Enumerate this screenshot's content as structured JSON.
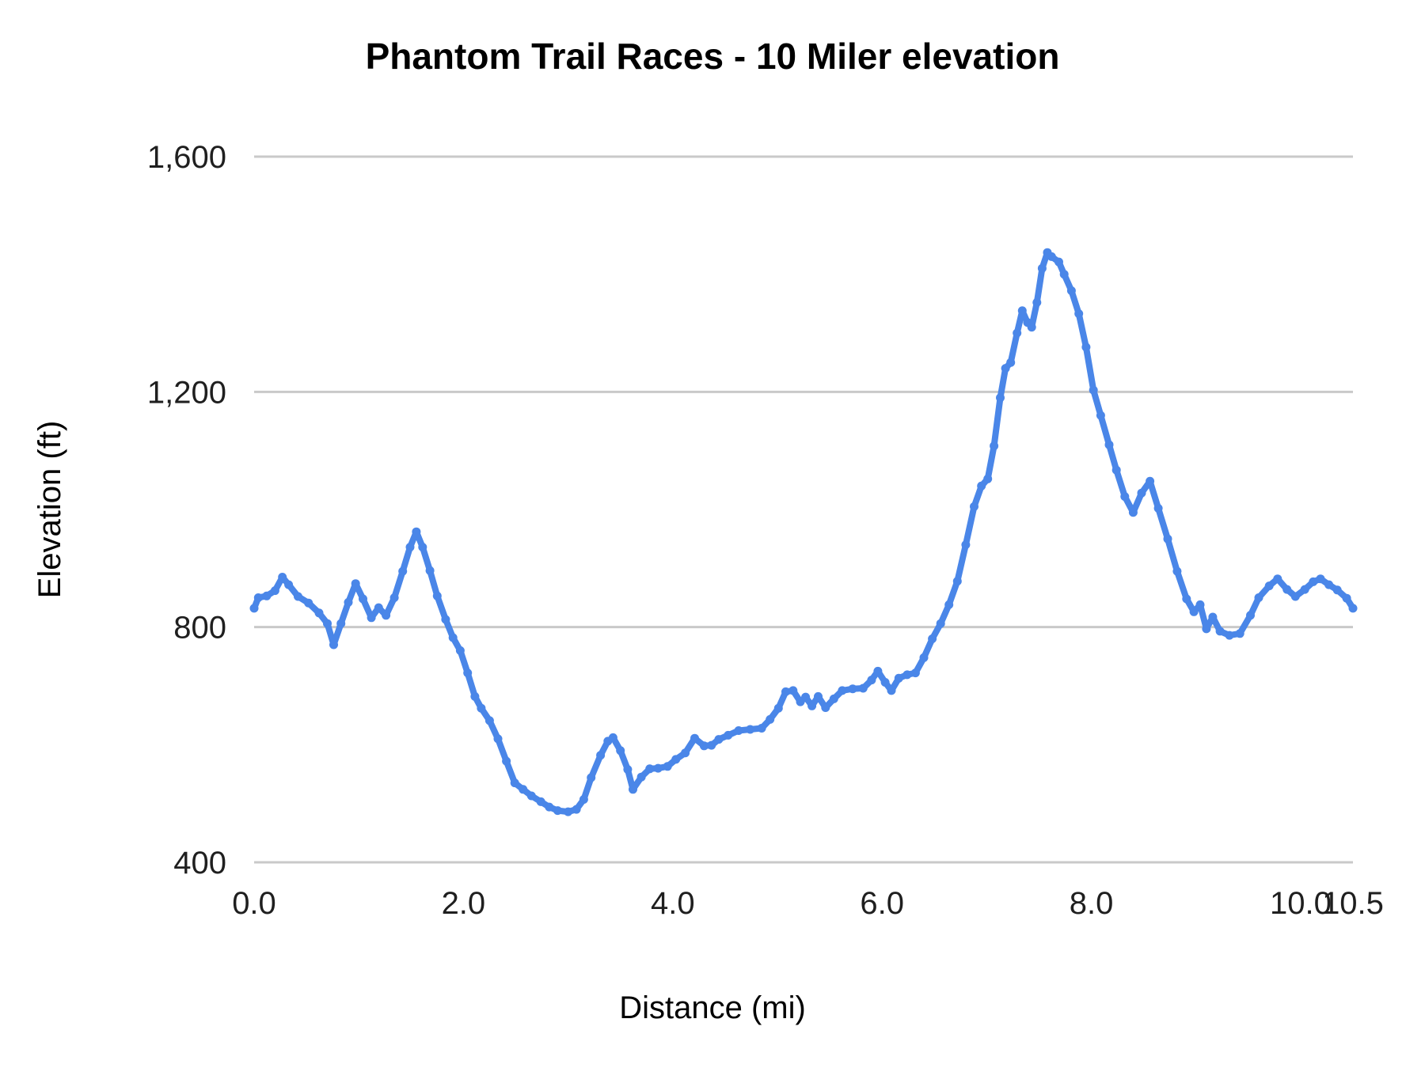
{
  "title": "Phantom Trail Races - 10 Miler elevation",
  "chart_data": {
    "type": "line",
    "title": "Phantom Trail Races - 10 Miler elevation",
    "xlabel": "Distance (mi)",
    "ylabel": "Elevation (ft)",
    "xlim": [
      0,
      10.5
    ],
    "ylim": [
      400,
      1600
    ],
    "grid": "horizontal-only",
    "legend": "none",
    "series_color": "#4a86e8",
    "gridline_color": "#c9c9c9",
    "label_color": "#1f1f1f",
    "title_color": "#000000",
    "x_ticks": [
      {
        "value": 0,
        "label": "0.0"
      },
      {
        "value": 2,
        "label": "2.0"
      },
      {
        "value": 4,
        "label": "4.0"
      },
      {
        "value": 6,
        "label": "6.0"
      },
      {
        "value": 8,
        "label": "8.0"
      },
      {
        "value": 10,
        "label": "10.0"
      },
      {
        "value": 10.5,
        "label": "10.5"
      }
    ],
    "y_ticks": [
      {
        "value": 400,
        "label": "400"
      },
      {
        "value": 800,
        "label": "800"
      },
      {
        "value": 1200,
        "label": "1,200"
      },
      {
        "value": 1600,
        "label": "1,600"
      }
    ],
    "points": [
      [
        0.0,
        832
      ],
      [
        0.04,
        850
      ],
      [
        0.12,
        853
      ],
      [
        0.2,
        862
      ],
      [
        0.27,
        885
      ],
      [
        0.33,
        872
      ],
      [
        0.42,
        852
      ],
      [
        0.52,
        841
      ],
      [
        0.62,
        824
      ],
      [
        0.7,
        806
      ],
      [
        0.76,
        770
      ],
      [
        0.83,
        806
      ],
      [
        0.9,
        842
      ],
      [
        0.97,
        874
      ],
      [
        1.04,
        848
      ],
      [
        1.12,
        816
      ],
      [
        1.19,
        833
      ],
      [
        1.26,
        820
      ],
      [
        1.34,
        850
      ],
      [
        1.42,
        895
      ],
      [
        1.49,
        936
      ],
      [
        1.55,
        962
      ],
      [
        1.61,
        936
      ],
      [
        1.68,
        896
      ],
      [
        1.75,
        853
      ],
      [
        1.83,
        813
      ],
      [
        1.9,
        782
      ],
      [
        1.97,
        760
      ],
      [
        2.04,
        722
      ],
      [
        2.11,
        682
      ],
      [
        2.17,
        662
      ],
      [
        2.25,
        641
      ],
      [
        2.33,
        610
      ],
      [
        2.41,
        572
      ],
      [
        2.49,
        535
      ],
      [
        2.57,
        524
      ],
      [
        2.65,
        513
      ],
      [
        2.74,
        503
      ],
      [
        2.82,
        494
      ],
      [
        2.9,
        488
      ],
      [
        3.0,
        486
      ],
      [
        3.08,
        490
      ],
      [
        3.15,
        507
      ],
      [
        3.22,
        544
      ],
      [
        3.31,
        582
      ],
      [
        3.38,
        606
      ],
      [
        3.43,
        612
      ],
      [
        3.5,
        590
      ],
      [
        3.57,
        558
      ],
      [
        3.62,
        524
      ],
      [
        3.7,
        545
      ],
      [
        3.78,
        559
      ],
      [
        3.86,
        560
      ],
      [
        3.95,
        563
      ],
      [
        4.03,
        575
      ],
      [
        4.12,
        586
      ],
      [
        4.21,
        611
      ],
      [
        4.3,
        598
      ],
      [
        4.37,
        599
      ],
      [
        4.44,
        609
      ],
      [
        4.53,
        616
      ],
      [
        4.63,
        624
      ],
      [
        4.74,
        626
      ],
      [
        4.85,
        628
      ],
      [
        4.93,
        643
      ],
      [
        5.01,
        662
      ],
      [
        5.08,
        690
      ],
      [
        5.15,
        692
      ],
      [
        5.22,
        673
      ],
      [
        5.27,
        681
      ],
      [
        5.33,
        666
      ],
      [
        5.39,
        682
      ],
      [
        5.46,
        663
      ],
      [
        5.54,
        678
      ],
      [
        5.62,
        692
      ],
      [
        5.72,
        695
      ],
      [
        5.82,
        696
      ],
      [
        5.9,
        710
      ],
      [
        5.96,
        725
      ],
      [
        6.03,
        706
      ],
      [
        6.09,
        692
      ],
      [
        6.16,
        713
      ],
      [
        6.24,
        719
      ],
      [
        6.32,
        722
      ],
      [
        6.4,
        748
      ],
      [
        6.48,
        780
      ],
      [
        6.56,
        806
      ],
      [
        6.64,
        838
      ],
      [
        6.72,
        878
      ],
      [
        6.8,
        940
      ],
      [
        6.88,
        1005
      ],
      [
        6.95,
        1040
      ],
      [
        7.01,
        1052
      ],
      [
        7.07,
        1108
      ],
      [
        7.13,
        1190
      ],
      [
        7.18,
        1240
      ],
      [
        7.23,
        1250
      ],
      [
        7.29,
        1300
      ],
      [
        7.34,
        1338
      ],
      [
        7.39,
        1318
      ],
      [
        7.43,
        1310
      ],
      [
        7.48,
        1352
      ],
      [
        7.53,
        1410
      ],
      [
        7.58,
        1437
      ],
      [
        7.62,
        1430
      ],
      [
        7.69,
        1421
      ],
      [
        7.74,
        1400
      ],
      [
        7.81,
        1372
      ],
      [
        7.88,
        1333
      ],
      [
        7.95,
        1276
      ],
      [
        8.02,
        1203
      ],
      [
        8.09,
        1160
      ],
      [
        8.17,
        1110
      ],
      [
        8.24,
        1067
      ],
      [
        8.32,
        1022
      ],
      [
        8.4,
        995
      ],
      [
        8.48,
        1028
      ],
      [
        8.56,
        1048
      ],
      [
        8.64,
        1002
      ],
      [
        8.73,
        950
      ],
      [
        8.82,
        895
      ],
      [
        8.91,
        848
      ],
      [
        8.98,
        826
      ],
      [
        9.04,
        838
      ],
      [
        9.1,
        797
      ],
      [
        9.16,
        817
      ],
      [
        9.23,
        793
      ],
      [
        9.32,
        786
      ],
      [
        9.42,
        789
      ],
      [
        9.52,
        820
      ],
      [
        9.6,
        850
      ],
      [
        9.7,
        870
      ],
      [
        9.78,
        882
      ],
      [
        9.87,
        864
      ],
      [
        9.95,
        852
      ],
      [
        10.04,
        864
      ],
      [
        10.12,
        877
      ],
      [
        10.19,
        882
      ],
      [
        10.27,
        872
      ],
      [
        10.35,
        863
      ],
      [
        10.44,
        849
      ],
      [
        10.5,
        832
      ]
    ]
  }
}
